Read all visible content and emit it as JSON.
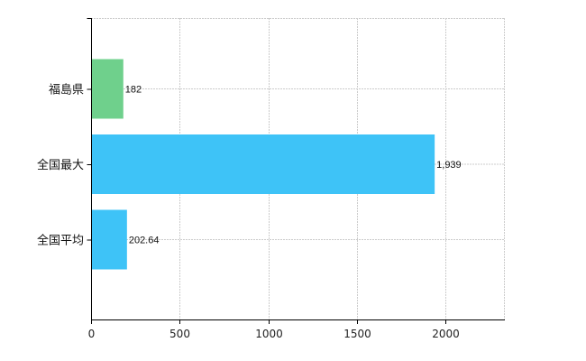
{
  "chart_data": {
    "type": "bar",
    "orientation": "horizontal",
    "categories": [
      "福島県",
      "全国最大",
      "全国平均"
    ],
    "values": [
      182,
      1939,
      202.64
    ],
    "value_labels": [
      "182",
      "1,939",
      "202.64"
    ],
    "bar_colors": [
      "#6fd08c",
      "#3ec3f7",
      "#3ec3f7"
    ],
    "xlim": [
      0,
      2330
    ],
    "xticks": [
      0,
      500,
      1000,
      1500,
      2000
    ],
    "xtick_labels": [
      "0",
      "500",
      "1000",
      "1500",
      "2000"
    ],
    "grid": true,
    "title": "",
    "xlabel": "",
    "ylabel": ""
  }
}
